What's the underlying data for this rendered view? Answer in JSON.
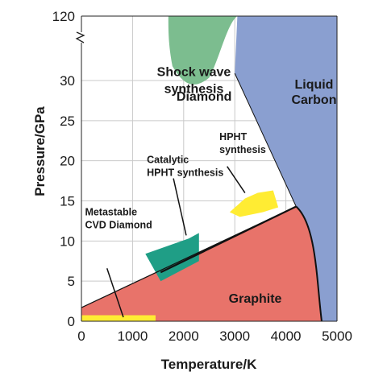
{
  "chart_data": {
    "type": "phase_diagram",
    "xlabel": "Temperature/K",
    "ylabel": "Pressure/GPa",
    "x_ticks": [
      0,
      1000,
      2000,
      3000,
      4000,
      5000
    ],
    "y_ticks": [
      0,
      5,
      10,
      15,
      20,
      25,
      30,
      120
    ],
    "xlim": [
      0,
      5000
    ],
    "ylim": [
      0,
      120
    ],
    "y_axis_break": "between 30 and 120",
    "grid": true,
    "colors": {
      "graphite": "#e8736a",
      "liquid": "#8a9fd0",
      "shock": "#7cbd8f",
      "catalytic": "#1f9e86",
      "hpht": "#ffec33",
      "cvd": "#ffec33",
      "grid": "#c9c9c9",
      "boundary": "#111111"
    },
    "regions": [
      {
        "name": "Diamond",
        "label_position": [
          2400,
          27.5
        ]
      },
      {
        "name": "Graphite",
        "label_position": [
          3400,
          2.3
        ]
      },
      {
        "name": "Liquid Carbon",
        "label_lines": [
          "Liquid",
          "Carbon"
        ],
        "label_position": [
          4550,
          29
        ]
      },
      {
        "name": "Shock wave synthesis",
        "label_lines": [
          "Shock wave",
          "synthesis"
        ],
        "label_position": [
          2200,
          36
        ]
      },
      {
        "name": "Catalytic HPHT synthesis",
        "label_lines": [
          "Catalytic",
          "HPHT synthesis"
        ],
        "label_position": [
          1280,
          19.7
        ]
      },
      {
        "name": "HPHT synthesis",
        "label_lines": [
          "HPHT",
          "synthesis"
        ],
        "label_position": [
          2700,
          22.6
        ]
      },
      {
        "name": "Metastable CVD Diamond",
        "label_lines": [
          "Metastable",
          "CVD Diamond"
        ],
        "label_position": [
          70,
          13.2
        ]
      }
    ],
    "graphite_diamond_boundary": [
      [
        0,
        1.7
      ],
      [
        4200,
        14.3
      ]
    ],
    "diamond_liquid_boundary": [
      [
        3000,
        40
      ],
      [
        4200,
        14.3
      ]
    ],
    "graphite_liquid_boundary": [
      [
        4200,
        14.3
      ],
      [
        4700,
        0
      ]
    ]
  }
}
